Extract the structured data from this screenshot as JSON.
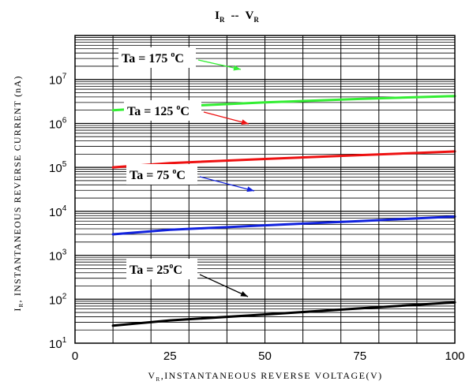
{
  "chart_data": {
    "type": "line",
    "title": {
      "main": "I",
      "main_sub": "R",
      "sep": "--",
      "vs": "V",
      "vs_sub": "R"
    },
    "ylabel": {
      "main": "I",
      "sub": "R",
      "rest": ", INSTANTANEOUS REVERSE CURRENT (nA)"
    },
    "xlabel": {
      "main": "V",
      "sub": "R",
      "rest": ",INSTANTANEOUS REVERSE VOLTAGE(V)"
    },
    "xlim": [
      0,
      100
    ],
    "ylim": [
      10,
      100000000
    ],
    "yscale": "log",
    "xticks": [
      "0",
      "25",
      "50",
      "75",
      "100"
    ],
    "yticks": [
      {
        "base": "10",
        "exp": "1"
      },
      {
        "base": "10",
        "exp": "2"
      },
      {
        "base": "10",
        "exp": "3"
      },
      {
        "base": "10",
        "exp": "4"
      },
      {
        "base": "10",
        "exp": "5"
      },
      {
        "base": "10",
        "exp": "6"
      },
      {
        "base": "10",
        "exp": "7"
      }
    ],
    "grid": true,
    "series": [
      {
        "name": "Ta = 175 °C",
        "label_main": "Ta = 175 ",
        "label_deg": "o",
        "label_unit": "C",
        "color": "#33ee33",
        "x": [
          10,
          25,
          50,
          75,
          100
        ],
        "y": [
          2000000,
          2400000,
          3000000,
          3600000,
          4200000
        ]
      },
      {
        "name": "Ta = 125 °C",
        "label_main": "Ta = 125 ",
        "label_deg": "o",
        "label_unit": "C",
        "color": "#ee1111",
        "x": [
          10,
          25,
          50,
          75,
          100
        ],
        "y": [
          100000,
          125000,
          155000,
          190000,
          230000
        ]
      },
      {
        "name": "Ta = 75 °C",
        "label_main": "Ta = 75 ",
        "label_deg": "o",
        "label_unit": "C",
        "color": "#1122dd",
        "x": [
          10,
          25,
          50,
          75,
          100
        ],
        "y": [
          3000,
          3800,
          4800,
          6000,
          7600
        ]
      },
      {
        "name": "Ta = 25 °C",
        "label_main": "Ta = 25",
        "label_deg": "o",
        "label_unit": "C",
        "color": "#000000",
        "x": [
          10,
          25,
          50,
          75,
          100
        ],
        "y": [
          25,
          33,
          45,
          62,
          85
        ]
      }
    ]
  }
}
